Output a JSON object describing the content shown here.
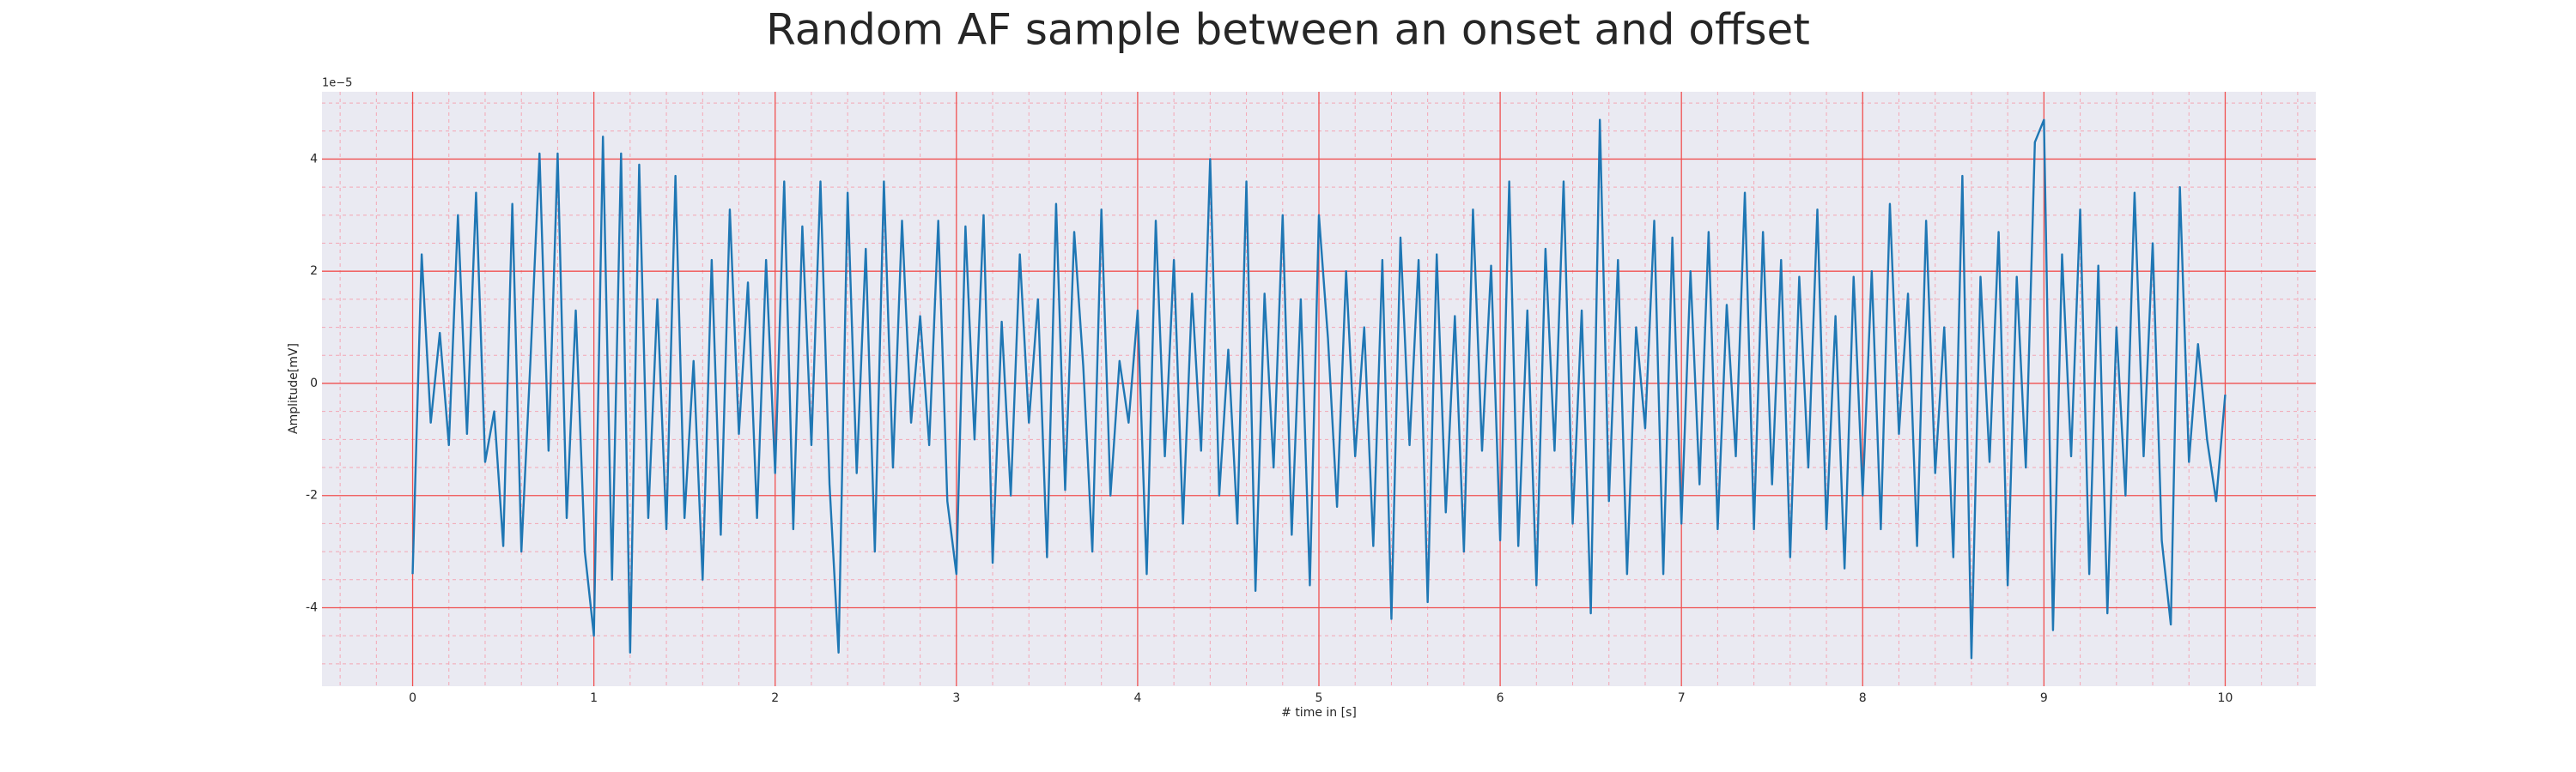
{
  "chart_data": {
    "type": "line",
    "title": "Random AF sample between an onset and offset",
    "xlabel": "# time in [s]",
    "ylabel": "Amplitude[mV]",
    "y_offset_label": "1e−5",
    "color": "#1f77b4",
    "grid": true,
    "xlim": [
      -0.5,
      10.5
    ],
    "ylim": [
      -5.4,
      5.2
    ],
    "xticks": [
      0,
      1,
      2,
      3,
      4,
      5,
      6,
      7,
      8,
      9,
      10
    ],
    "yticks": [
      -4,
      -2,
      0,
      2,
      4
    ],
    "xminorticks": [
      -0.4,
      -0.2,
      0.2,
      0.4,
      0.6,
      0.8,
      1.2,
      1.4,
      1.6,
      1.8,
      2.2,
      2.4,
      2.6,
      2.8,
      3.2,
      3.4,
      3.6,
      3.8,
      4.2,
      4.4,
      4.6,
      4.8,
      5.2,
      5.4,
      5.6,
      5.8,
      6.2,
      6.4,
      6.6,
      6.8,
      7.2,
      7.4,
      7.6,
      7.8,
      8.2,
      8.4,
      8.6,
      8.8,
      9.2,
      9.4,
      9.6,
      9.8,
      10.2,
      10.4
    ],
    "yminorticks": [
      -5,
      -4.5,
      -3.5,
      -3,
      -2.5,
      -1.5,
      -1,
      -0.5,
      0.5,
      1,
      1.5,
      2.5,
      3,
      3.5,
      4.5,
      5
    ],
    "x": [
      0,
      0.05,
      0.1,
      0.15,
      0.2,
      0.25,
      0.3,
      0.35,
      0.4,
      0.45,
      0.5,
      0.55,
      0.6,
      0.65,
      0.7,
      0.75,
      0.8,
      0.85,
      0.9,
      0.95,
      1,
      1.05,
      1.1,
      1.15,
      1.2,
      1.25,
      1.3,
      1.35,
      1.4,
      1.45,
      1.5,
      1.55,
      1.6,
      1.65,
      1.7,
      1.75,
      1.8,
      1.85,
      1.9,
      1.95,
      2,
      2.05,
      2.1,
      2.15,
      2.2,
      2.25,
      2.3,
      2.35,
      2.4,
      2.45,
      2.5,
      2.55,
      2.6,
      2.65,
      2.7,
      2.75,
      2.8,
      2.85,
      2.9,
      2.95,
      3,
      3.05,
      3.1,
      3.15,
      3.2,
      3.25,
      3.3,
      3.35,
      3.4,
      3.45,
      3.5,
      3.55,
      3.6,
      3.65,
      3.7,
      3.75,
      3.8,
      3.85,
      3.9,
      3.95,
      4,
      4.05,
      4.1,
      4.15,
      4.2,
      4.25,
      4.3,
      4.35,
      4.4,
      4.45,
      4.5,
      4.55,
      4.6,
      4.65,
      4.7,
      4.75,
      4.8,
      4.85,
      4.9,
      4.95,
      5,
      5.05,
      5.1,
      5.15,
      5.2,
      5.25,
      5.3,
      5.35,
      5.4,
      5.45,
      5.5,
      5.55,
      5.6,
      5.65,
      5.7,
      5.75,
      5.8,
      5.85,
      5.9,
      5.95,
      6,
      6.05,
      6.1,
      6.15,
      6.2,
      6.25,
      6.3,
      6.35,
      6.4,
      6.45,
      6.5,
      6.55,
      6.6,
      6.65,
      6.7,
      6.75,
      6.8,
      6.85,
      6.9,
      6.95,
      7,
      7.05,
      7.1,
      7.15,
      7.2,
      7.25,
      7.3,
      7.35,
      7.4,
      7.45,
      7.5,
      7.55,
      7.6,
      7.65,
      7.7,
      7.75,
      7.8,
      7.85,
      7.9,
      7.95,
      8,
      8.05,
      8.1,
      8.15,
      8.2,
      8.25,
      8.3,
      8.35,
      8.4,
      8.45,
      8.5,
      8.55,
      8.6,
      8.65,
      8.7,
      8.75,
      8.8,
      8.85,
      8.9,
      8.95,
      9,
      9.05,
      9.1,
      9.15,
      9.2,
      9.25,
      9.3,
      9.35,
      9.4,
      9.45,
      9.5,
      9.55,
      9.6,
      9.65,
      9.7,
      9.75,
      9.8,
      9.85,
      9.9,
      9.95,
      10
    ],
    "values": [
      -3.4,
      2.3,
      -0.7,
      0.9,
      -1.1,
      3.0,
      -0.9,
      3.4,
      -1.4,
      -0.5,
      -2.9,
      3.2,
      -3.0,
      0.4,
      4.1,
      -1.2,
      4.1,
      -2.4,
      1.3,
      -3.0,
      -4.5,
      4.4,
      -3.5,
      4.1,
      -4.8,
      3.9,
      -2.4,
      1.5,
      -2.6,
      3.7,
      -2.4,
      0.4,
      -3.5,
      2.2,
      -2.7,
      3.1,
      -0.9,
      1.8,
      -2.4,
      2.2,
      -1.6,
      3.6,
      -2.6,
      2.8,
      -1.1,
      3.6,
      -1.8,
      -4.8,
      3.4,
      -1.6,
      2.4,
      -3.0,
      3.6,
      -1.5,
      2.9,
      -0.7,
      1.2,
      -1.1,
      2.9,
      -2.1,
      -3.4,
      2.8,
      -1.0,
      3.0,
      -3.2,
      1.1,
      -2.0,
      2.3,
      -0.7,
      1.5,
      -3.1,
      3.2,
      -1.9,
      2.7,
      0.3,
      -3.0,
      3.1,
      -2.0,
      0.4,
      -0.7,
      1.3,
      -3.4,
      2.9,
      -1.3,
      2.2,
      -2.5,
      1.6,
      -1.2,
      4.0,
      -2.0,
      0.6,
      -2.5,
      3.6,
      -3.7,
      1.6,
      -1.5,
      3.0,
      -2.7,
      1.5,
      -3.6,
      3.0,
      0.8,
      -2.2,
      2.0,
      -1.3,
      1.0,
      -2.9,
      2.2,
      -4.2,
      2.6,
      -1.1,
      2.2,
      -3.9,
      2.3,
      -2.3,
      1.2,
      -3.0,
      3.1,
      -1.2,
      2.1,
      -2.8,
      3.6,
      -2.9,
      1.3,
      -3.6,
      2.4,
      -1.2,
      3.6,
      -2.5,
      1.3,
      -4.1,
      4.7,
      -2.1,
      2.2,
      -3.4,
      1.0,
      -0.8,
      2.9,
      -3.4,
      2.6,
      -2.5,
      2.0,
      -1.8,
      2.7,
      -2.6,
      1.4,
      -1.3,
      3.4,
      -2.6,
      2.7,
      -1.8,
      2.2,
      -3.1,
      1.9,
      -1.5,
      3.1,
      -2.6,
      1.2,
      -3.3,
      1.9,
      -2.0,
      2.0,
      -2.6,
      3.2,
      -0.9,
      1.6,
      -2.9,
      2.9,
      -1.6,
      1.0,
      -3.1,
      3.7,
      -4.9,
      1.9,
      -1.4,
      2.7,
      -3.6,
      1.9,
      -1.5,
      4.3,
      4.7,
      -4.4,
      2.3,
      -1.3,
      3.1,
      -3.4,
      2.1,
      -4.1,
      1.0,
      -2.0,
      3.4,
      -1.3,
      2.5,
      -2.8,
      -4.3,
      3.5,
      -1.4,
      0.7,
      -1.0,
      -2.1,
      -0.2
    ]
  }
}
